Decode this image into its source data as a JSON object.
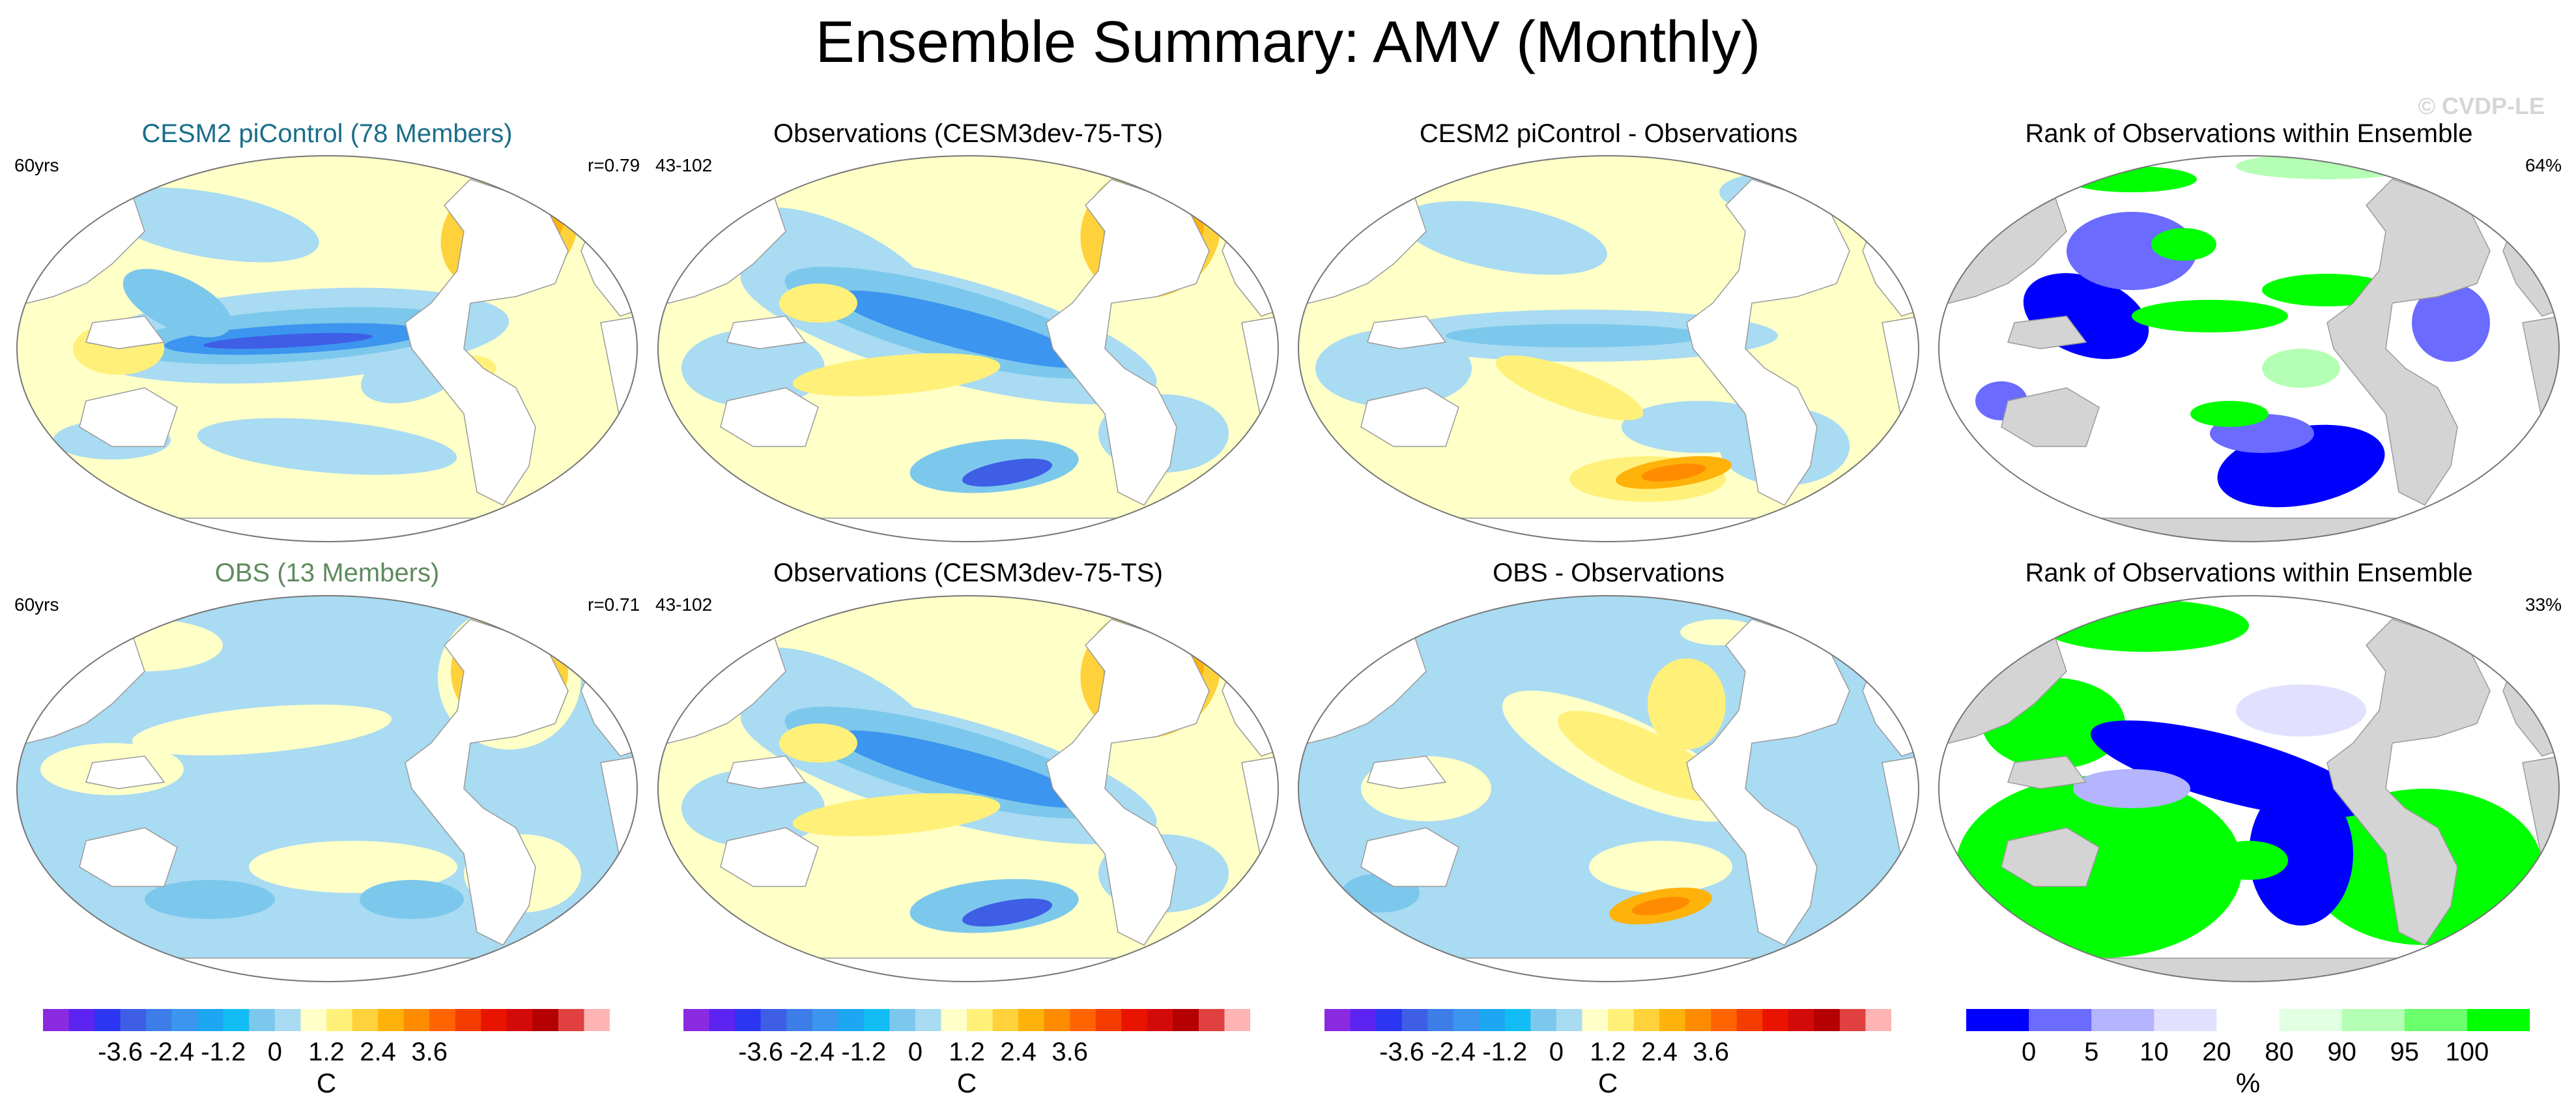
{
  "title": "Ensemble Summary: AMV (Monthly)",
  "watermark": "© CVDP-LE",
  "colors": {
    "model_title": "#1a6e8a",
    "obs_title": "#5e8b5e",
    "land": "#ffffff",
    "land_rank": "#d4d4d4",
    "coast": "#9a9a9a"
  },
  "rows": [
    {
      "panels": [
        {
          "title": "CESM2 piControl (78 Members)",
          "left": "60yrs",
          "right": "r=0.79",
          "kind": "model"
        },
        {
          "title": "Observations (CESM3dev-75-TS)",
          "left": "43-102",
          "right": "",
          "kind": "obs"
        },
        {
          "title": "CESM2 piControl - Observations",
          "left": "",
          "right": "",
          "kind": "diff1"
        },
        {
          "title": "Rank of Observations within Ensemble",
          "left": "",
          "right": "64%",
          "kind": "rank1"
        }
      ]
    },
    {
      "panels": [
        {
          "title": "OBS (13 Members)",
          "left": "60yrs",
          "right": "r=0.71",
          "kind": "model2"
        },
        {
          "title": "Observations (CESM3dev-75-TS)",
          "left": "43-102",
          "right": "",
          "kind": "obs"
        },
        {
          "title": "OBS - Observations",
          "left": "",
          "right": "",
          "kind": "diff2"
        },
        {
          "title": "Rank of Observations within Ensemble",
          "left": "",
          "right": "33%",
          "kind": "rank2"
        }
      ]
    }
  ],
  "colorbars": [
    {
      "unit": "C",
      "ticks": [
        "-3.6",
        "-2.4",
        "-1.2",
        "0",
        "1.2",
        "2.4",
        "3.6"
      ],
      "tick_bins": [
        3,
        5,
        7,
        9,
        11,
        13,
        15
      ],
      "colors": [
        "#8a2be2",
        "#5d23f0",
        "#2b35f2",
        "#3e5ee6",
        "#3c7de8",
        "#3c95ef",
        "#1da7f2",
        "#12bdf5",
        "#7cc8ec",
        "#a9dbf2",
        "#ffffc8",
        "#fff07a",
        "#ffd23c",
        "#ffb20a",
        "#ff8c00",
        "#ff6400",
        "#f43c00",
        "#e81400",
        "#d20a0a",
        "#b40000",
        "#e04040",
        "#ffb4b4"
      ]
    },
    {
      "unit": "C",
      "ticks": [
        "-3.6",
        "-2.4",
        "-1.2",
        "0",
        "1.2",
        "2.4",
        "3.6"
      ],
      "tick_bins": [
        3,
        5,
        7,
        9,
        11,
        13,
        15
      ],
      "colors": [
        "#8a2be2",
        "#5d23f0",
        "#2b35f2",
        "#3e5ee6",
        "#3c7de8",
        "#3c95ef",
        "#1da7f2",
        "#12bdf5",
        "#7cc8ec",
        "#a9dbf2",
        "#ffffc8",
        "#fff07a",
        "#ffd23c",
        "#ffb20a",
        "#ff8c00",
        "#ff6400",
        "#f43c00",
        "#e81400",
        "#d20a0a",
        "#b40000",
        "#e04040",
        "#ffb4b4"
      ]
    },
    {
      "unit": "C",
      "ticks": [
        "-3.6",
        "-2.4",
        "-1.2",
        "0",
        "1.2",
        "2.4",
        "3.6"
      ],
      "tick_bins": [
        3,
        5,
        7,
        9,
        11,
        13,
        15
      ],
      "colors": [
        "#8a2be2",
        "#5d23f0",
        "#2b35f2",
        "#3e5ee6",
        "#3c7de8",
        "#3c95ef",
        "#1da7f2",
        "#12bdf5",
        "#7cc8ec",
        "#a9dbf2",
        "#ffffc8",
        "#fff07a",
        "#ffd23c",
        "#ffb20a",
        "#ff8c00",
        "#ff6400",
        "#f43c00",
        "#e81400",
        "#d20a0a",
        "#b40000",
        "#e04040",
        "#ffb4b4"
      ]
    },
    {
      "unit": "%",
      "ticks": [
        "0",
        "5",
        "10",
        "20",
        "80",
        "90",
        "95",
        "100"
      ],
      "tick_bins": [
        1,
        2,
        3,
        4,
        5,
        6,
        7,
        8
      ],
      "colors": [
        "#0000ff",
        "#6b6bff",
        "#b4b4ff",
        "#e1e1ff",
        "#ffffff",
        "#e1ffe1",
        "#b4ffb4",
        "#6bff6b",
        "#00ff00"
      ]
    }
  ]
}
